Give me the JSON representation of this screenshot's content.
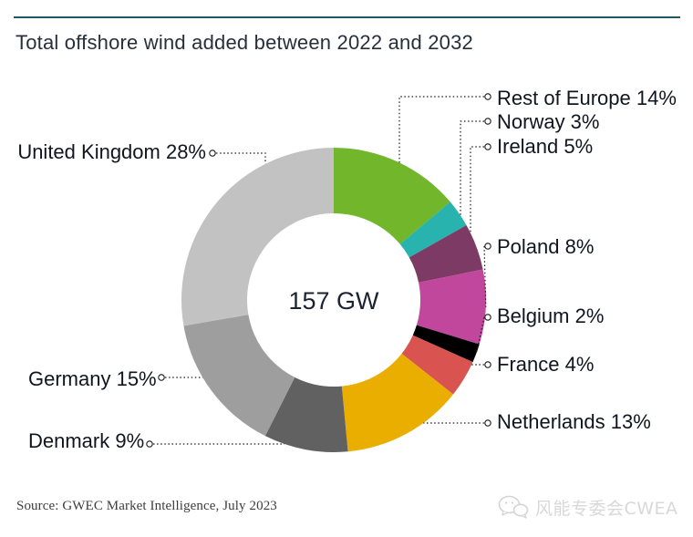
{
  "header": {
    "title": "Total offshore wind added between 2022 and 2032",
    "title_color": "#26303c",
    "rule_color": "#1e5966"
  },
  "chart_data": {
    "type": "pie",
    "style": "donut",
    "start_angle_deg": 0,
    "direction": "clockwise",
    "center_label": "157 GW",
    "segments": [
      {
        "name": "Rest of Europe",
        "label": "Rest of Europe 14%",
        "pct": 14,
        "color": "#72b62c"
      },
      {
        "name": "Norway",
        "label": "Norway 3%",
        "pct": 3,
        "color": "#29b3ae"
      },
      {
        "name": "Ireland",
        "label": "Ireland 5%",
        "pct": 5,
        "color": "#7c3a64"
      },
      {
        "name": "Poland",
        "label": "Poland 8%",
        "pct": 8,
        "color": "#c0479c"
      },
      {
        "name": "Belgium",
        "label": "Belgium 2%",
        "pct": 2,
        "color": "#000000"
      },
      {
        "name": "France",
        "label": "France 4%",
        "pct": 4,
        "color": "#d95350"
      },
      {
        "name": "Netherlands",
        "label": "Netherlands 13%",
        "pct": 13,
        "color": "#e9ae00"
      },
      {
        "name": "Denmark",
        "label": "Denmark 9%",
        "pct": 9,
        "color": "#616161"
      },
      {
        "name": "Germany",
        "label": "Germany 15%",
        "pct": 15,
        "color": "#9e9e9e"
      },
      {
        "name": "United Kingdom",
        "label": "United Kingdom 28%",
        "pct": 28,
        "color": "#c2c2c2"
      }
    ],
    "leader_line_color": "#1a1a1a"
  },
  "footer": {
    "source": "Source: GWEC Market Intelligence, July 2023",
    "watermark": "风能专委会CWEA"
  }
}
